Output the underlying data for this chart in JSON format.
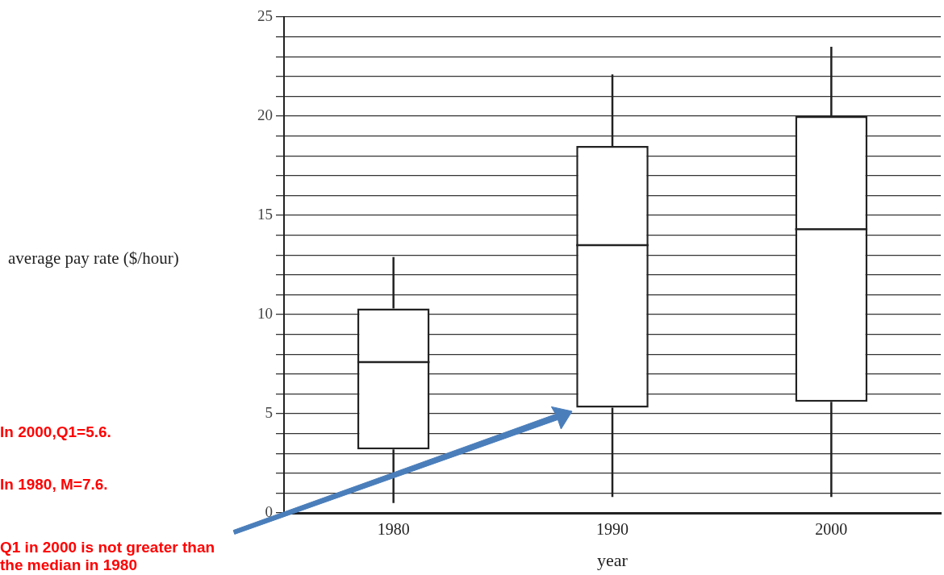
{
  "chart_data": {
    "type": "box",
    "xlabel": "year",
    "ylabel": "average pay rate ($/hour)",
    "categories": [
      "1980",
      "1990",
      "2000"
    ],
    "boxes": [
      {
        "low": 0.5,
        "q1": 3.2,
        "median": 7.6,
        "q3": 10.3,
        "high": 12.9
      },
      {
        "low": 0.8,
        "q1": 5.3,
        "median": 13.5,
        "q3": 18.5,
        "high": 22.1
      },
      {
        "low": 0.8,
        "q1": 5.6,
        "median": 14.3,
        "q3": 20,
        "high": 23.5
      }
    ],
    "ylim": [
      0,
      25
    ],
    "yticks": [
      0,
      {
        "value": 1,
        "label": null
      },
      {
        "value": 2,
        "label": null
      },
      {
        "value": 3,
        "label": null
      },
      {
        "value": 4,
        "label": null
      },
      5,
      {
        "value": 6,
        "label": null
      },
      {
        "value": 7,
        "label": null
      },
      {
        "value": 8,
        "label": null
      },
      {
        "value": 9,
        "label": null
      },
      10,
      {
        "value": 11,
        "label": null
      },
      {
        "value": 12,
        "label": null
      },
      {
        "value": 13,
        "label": null
      },
      {
        "value": 14,
        "label": null
      },
      15,
      {
        "value": 16,
        "label": null
      },
      {
        "value": 17,
        "label": null
      },
      {
        "value": 18,
        "label": null
      },
      {
        "value": 19,
        "label": null
      },
      20,
      {
        "value": 21,
        "label": null
      },
      {
        "value": 22,
        "label": null
      },
      {
        "value": 23,
        "label": null
      },
      {
        "value": 24,
        "label": null
      },
      25
    ],
    "grid": "y",
    "annotations": [
      "In 2000,Q1=5.6.",
      "In 1980, M=7.6.",
      "Q1 in 2000 is not greater than the median in 1980"
    ]
  }
}
